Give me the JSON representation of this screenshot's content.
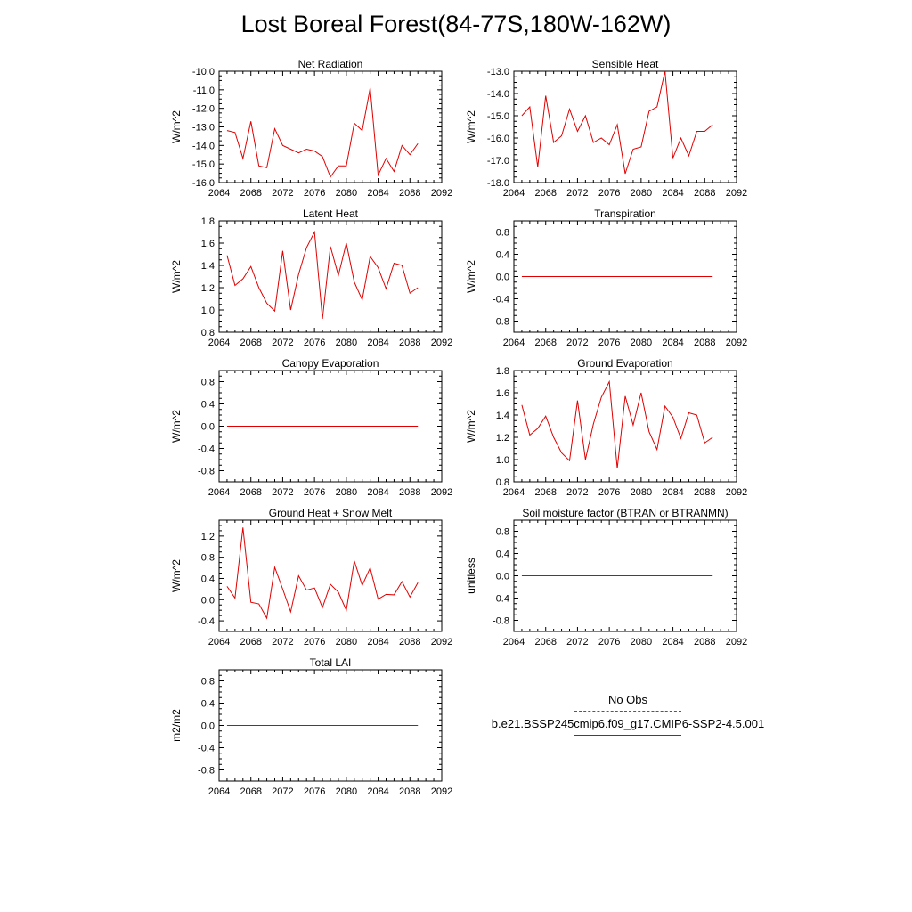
{
  "page": {
    "title": "Lost Boreal Forest(84-77S,180W-162W)"
  },
  "legend": {
    "entries": [
      {
        "label": "No Obs",
        "color": "#4b4bb4",
        "style": "dashed"
      },
      {
        "label": "b.e21.BSSP245cmip6.f09_g17.CMIP6-SSP2-4.5.001",
        "color": "#e00000",
        "style": "solid"
      }
    ]
  },
  "chart_data": [
    {
      "type": "line",
      "title": "Net Radiation",
      "ylabel": "W/m^2",
      "xlim": [
        2064,
        2092
      ],
      "ylim": [
        -16.0,
        -10.0
      ],
      "xticks": [
        2064,
        2068,
        2072,
        2076,
        2080,
        2084,
        2088,
        2092
      ],
      "yticks": [
        -16.0,
        -15.0,
        -14.0,
        -13.0,
        -12.0,
        -11.0,
        -10.0
      ],
      "tick_decimals": 1,
      "series": [
        {
          "color": "#e00000",
          "x": [
            2065,
            2066,
            2067,
            2068,
            2069,
            2070,
            2071,
            2072,
            2073,
            2074,
            2075,
            2076,
            2077,
            2078,
            2079,
            2080,
            2081,
            2082,
            2083,
            2084,
            2085,
            2086,
            2087,
            2088,
            2089
          ],
          "y": [
            -13.2,
            -13.3,
            -14.7,
            -12.7,
            -15.1,
            -15.2,
            -13.1,
            -14.0,
            -14.2,
            -14.4,
            -14.2,
            -14.3,
            -14.6,
            -15.7,
            -15.1,
            -15.1,
            -12.8,
            -13.2,
            -10.9,
            -15.6,
            -14.7,
            -15.4,
            -14.0,
            -14.5,
            -13.9
          ]
        }
      ]
    },
    {
      "type": "line",
      "title": "Sensible Heat",
      "ylabel": "W/m^2",
      "xlim": [
        2064,
        2092
      ],
      "ylim": [
        -18.0,
        -13.0
      ],
      "xticks": [
        2064,
        2068,
        2072,
        2076,
        2080,
        2084,
        2088,
        2092
      ],
      "yticks": [
        -18.0,
        -17.0,
        -16.0,
        -15.0,
        -14.0,
        -13.0
      ],
      "tick_decimals": 1,
      "series": [
        {
          "color": "#e00000",
          "x": [
            2065,
            2066,
            2067,
            2068,
            2069,
            2070,
            2071,
            2072,
            2073,
            2074,
            2075,
            2076,
            2077,
            2078,
            2079,
            2080,
            2081,
            2082,
            2083,
            2084,
            2085,
            2086,
            2087,
            2088,
            2089
          ],
          "y": [
            -15.0,
            -14.6,
            -17.3,
            -14.1,
            -16.2,
            -15.9,
            -14.7,
            -15.7,
            -15.0,
            -16.2,
            -16.0,
            -16.3,
            -15.4,
            -17.6,
            -16.5,
            -16.4,
            -14.8,
            -14.6,
            -13.0,
            -16.9,
            -16.0,
            -16.8,
            -15.7,
            -15.7,
            -15.4
          ]
        }
      ]
    },
    {
      "type": "line",
      "title": "Latent Heat",
      "ylabel": "W/m^2",
      "xlim": [
        2064,
        2092
      ],
      "ylim": [
        0.8,
        1.8
      ],
      "xticks": [
        2064,
        2068,
        2072,
        2076,
        2080,
        2084,
        2088,
        2092
      ],
      "yticks": [
        0.8,
        1.0,
        1.2,
        1.4,
        1.6,
        1.8
      ],
      "tick_decimals": 1,
      "series": [
        {
          "color": "#e00000",
          "x": [
            2065,
            2066,
            2067,
            2068,
            2069,
            2070,
            2071,
            2072,
            2073,
            2074,
            2075,
            2076,
            2077,
            2078,
            2079,
            2080,
            2081,
            2082,
            2083,
            2084,
            2085,
            2086,
            2087,
            2088,
            2089
          ],
          "y": [
            1.49,
            1.22,
            1.28,
            1.39,
            1.2,
            1.06,
            0.99,
            1.53,
            1.0,
            1.32,
            1.56,
            1.7,
            0.92,
            1.57,
            1.31,
            1.6,
            1.25,
            1.09,
            1.48,
            1.38,
            1.19,
            1.42,
            1.4,
            1.15,
            1.2
          ]
        }
      ]
    },
    {
      "type": "line",
      "title": "Transpiration",
      "ylabel": "W/m^2",
      "xlim": [
        2064,
        2092
      ],
      "ylim": [
        -1.0,
        1.0
      ],
      "xticks": [
        2064,
        2068,
        2072,
        2076,
        2080,
        2084,
        2088,
        2092
      ],
      "yticks": [
        -0.8,
        -0.4,
        0.0,
        0.4,
        0.8
      ],
      "tick_decimals": 1,
      "series": [
        {
          "color": "#e00000",
          "x": [
            2065,
            2066,
            2067,
            2068,
            2069,
            2070,
            2071,
            2072,
            2073,
            2074,
            2075,
            2076,
            2077,
            2078,
            2079,
            2080,
            2081,
            2082,
            2083,
            2084,
            2085,
            2086,
            2087,
            2088,
            2089
          ],
          "y": [
            0,
            0,
            0,
            0,
            0,
            0,
            0,
            0,
            0,
            0,
            0,
            0,
            0,
            0,
            0,
            0,
            0,
            0,
            0,
            0,
            0,
            0,
            0,
            0,
            0
          ]
        }
      ]
    },
    {
      "type": "line",
      "title": "Canopy Evaporation",
      "ylabel": "W/m^2",
      "xlim": [
        2064,
        2092
      ],
      "ylim": [
        -1.0,
        1.0
      ],
      "xticks": [
        2064,
        2068,
        2072,
        2076,
        2080,
        2084,
        2088,
        2092
      ],
      "yticks": [
        -0.8,
        -0.4,
        0.0,
        0.4,
        0.8
      ],
      "tick_decimals": 1,
      "series": [
        {
          "color": "#e00000",
          "x": [
            2065,
            2066,
            2067,
            2068,
            2069,
            2070,
            2071,
            2072,
            2073,
            2074,
            2075,
            2076,
            2077,
            2078,
            2079,
            2080,
            2081,
            2082,
            2083,
            2084,
            2085,
            2086,
            2087,
            2088,
            2089
          ],
          "y": [
            0,
            0,
            0,
            0,
            0,
            0,
            0,
            0,
            0,
            0,
            0,
            0,
            0,
            0,
            0,
            0,
            0,
            0,
            0,
            0,
            0,
            0,
            0,
            0,
            0
          ]
        }
      ]
    },
    {
      "type": "line",
      "title": "Ground Evaporation",
      "ylabel": "W/m^2",
      "xlim": [
        2064,
        2092
      ],
      "ylim": [
        0.8,
        1.8
      ],
      "xticks": [
        2064,
        2068,
        2072,
        2076,
        2080,
        2084,
        2088,
        2092
      ],
      "yticks": [
        0.8,
        1.0,
        1.2,
        1.4,
        1.6,
        1.8
      ],
      "tick_decimals": 1,
      "series": [
        {
          "color": "#e00000",
          "x": [
            2065,
            2066,
            2067,
            2068,
            2069,
            2070,
            2071,
            2072,
            2073,
            2074,
            2075,
            2076,
            2077,
            2078,
            2079,
            2080,
            2081,
            2082,
            2083,
            2084,
            2085,
            2086,
            2087,
            2088,
            2089
          ],
          "y": [
            1.49,
            1.22,
            1.28,
            1.39,
            1.2,
            1.06,
            0.99,
            1.53,
            1.0,
            1.32,
            1.56,
            1.7,
            0.92,
            1.57,
            1.31,
            1.6,
            1.25,
            1.09,
            1.48,
            1.38,
            1.19,
            1.42,
            1.4,
            1.15,
            1.2
          ]
        }
      ]
    },
    {
      "type": "line",
      "title": "Ground Heat + Snow Melt",
      "ylabel": "W/m^2",
      "xlim": [
        2064,
        2092
      ],
      "ylim": [
        -0.6,
        1.5
      ],
      "xticks": [
        2064,
        2068,
        2072,
        2076,
        2080,
        2084,
        2088,
        2092
      ],
      "yticks": [
        -0.4,
        0.0,
        0.4,
        0.8,
        1.2
      ],
      "tick_decimals": 1,
      "series": [
        {
          "color": "#e00000",
          "x": [
            2065,
            2066,
            2067,
            2068,
            2069,
            2070,
            2071,
            2072,
            2073,
            2074,
            2075,
            2076,
            2077,
            2078,
            2079,
            2080,
            2081,
            2082,
            2083,
            2084,
            2085,
            2086,
            2087,
            2088,
            2089
          ],
          "y": [
            0.25,
            0.03,
            1.36,
            -0.05,
            -0.08,
            -0.35,
            0.61,
            0.2,
            -0.23,
            0.45,
            0.18,
            0.22,
            -0.15,
            0.29,
            0.14,
            -0.2,
            0.73,
            0.27,
            0.6,
            0.01,
            0.1,
            0.09,
            0.34,
            0.05,
            0.32
          ]
        }
      ]
    },
    {
      "type": "line",
      "title": "Soil moisture factor (BTRAN or BTRANMN)",
      "ylabel": "unitless",
      "xlim": [
        2064,
        2092
      ],
      "ylim": [
        -1.0,
        1.0
      ],
      "xticks": [
        2064,
        2068,
        2072,
        2076,
        2080,
        2084,
        2088,
        2092
      ],
      "yticks": [
        -0.8,
        -0.4,
        0.0,
        0.4,
        0.8
      ],
      "tick_decimals": 1,
      "series": [
        {
          "color": "#e00000",
          "x": [
            2065,
            2066,
            2067,
            2068,
            2069,
            2070,
            2071,
            2072,
            2073,
            2074,
            2075,
            2076,
            2077,
            2078,
            2079,
            2080,
            2081,
            2082,
            2083,
            2084,
            2085,
            2086,
            2087,
            2088,
            2089
          ],
          "y": [
            0,
            0,
            0,
            0,
            0,
            0,
            0,
            0,
            0,
            0,
            0,
            0,
            0,
            0,
            0,
            0,
            0,
            0,
            0,
            0,
            0,
            0,
            0,
            0,
            0
          ]
        }
      ]
    },
    {
      "type": "line",
      "title": "Total LAI",
      "ylabel": "m2/m2",
      "xlim": [
        2064,
        2092
      ],
      "ylim": [
        -1.0,
        1.0
      ],
      "xticks": [
        2064,
        2068,
        2072,
        2076,
        2080,
        2084,
        2088,
        2092
      ],
      "yticks": [
        -0.8,
        -0.4,
        0.0,
        0.4,
        0.8
      ],
      "tick_decimals": 1,
      "series": [
        {
          "color": "#e00000",
          "x": [
            2065,
            2066,
            2067,
            2068,
            2069,
            2070,
            2071,
            2072,
            2073,
            2074,
            2075,
            2076,
            2077,
            2078,
            2079,
            2080,
            2081,
            2082,
            2083,
            2084,
            2085,
            2086,
            2087,
            2088,
            2089
          ],
          "y": [
            0,
            0,
            0,
            0,
            0,
            0,
            0,
            0,
            0,
            0,
            0,
            0,
            0,
            0,
            0,
            0,
            0,
            0,
            0,
            0,
            0,
            0,
            0,
            0,
            0
          ]
        }
      ]
    }
  ]
}
